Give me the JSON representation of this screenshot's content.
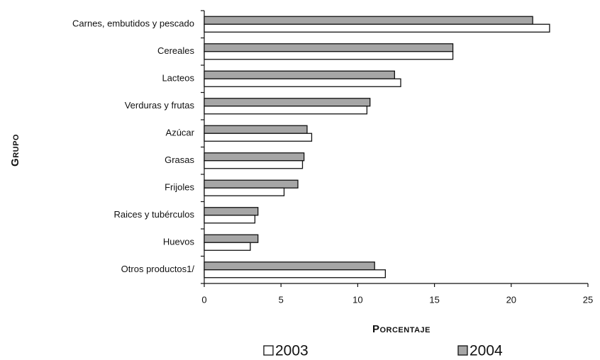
{
  "chart_data": {
    "type": "bar",
    "orientation": "horizontal",
    "y_label": "Grupo",
    "x_label": "Porcentaje",
    "categories": [
      "Carnes, embutidos y pescado",
      "Cereales",
      "Lacteos",
      "Verduras y frutas",
      "Azúcar",
      "Grasas",
      "Frijoles",
      "Raices y tubérculos",
      "Huevos",
      "Otros productos1/"
    ],
    "series": [
      {
        "name": "2004",
        "color": "#a6a6a6",
        "values": [
          21.4,
          16.2,
          12.4,
          10.8,
          6.7,
          6.5,
          6.1,
          3.5,
          3.5,
          11.1
        ]
      },
      {
        "name": "2003",
        "color": "#ffffff",
        "values": [
          22.5,
          16.2,
          12.8,
          10.6,
          7.0,
          6.4,
          5.2,
          3.3,
          3.0,
          11.8
        ]
      }
    ],
    "xlim": [
      0,
      25
    ],
    "xticks": [
      0,
      5,
      10,
      15,
      20,
      25
    ]
  }
}
